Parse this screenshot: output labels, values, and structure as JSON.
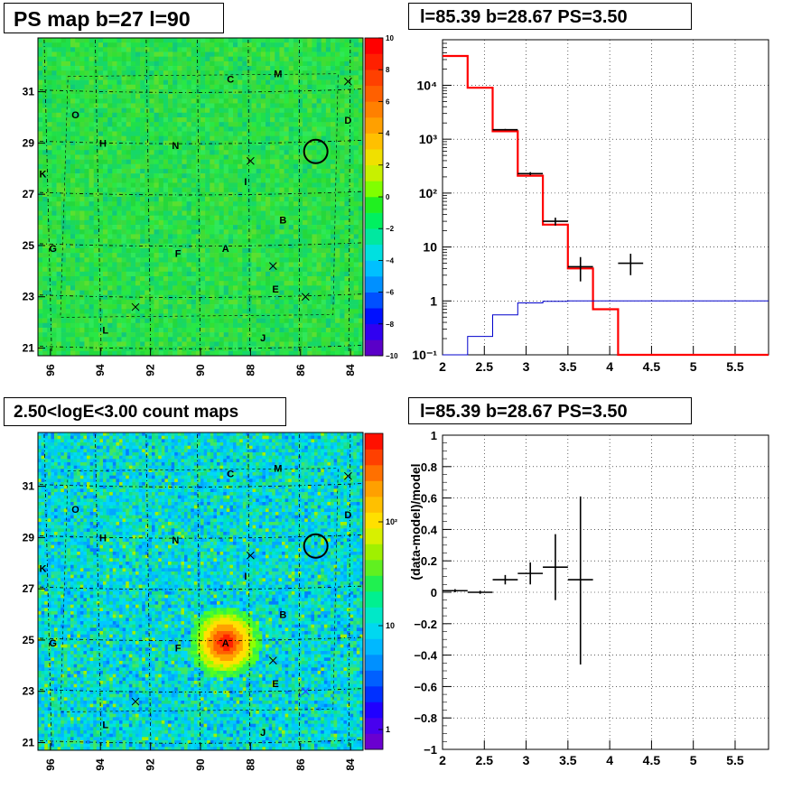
{
  "panels": {
    "top_left_title": "PS map b=27 l=90",
    "top_right_title": "l=85.39 b=28.67 PS=3.50",
    "bottom_left_title": "2.50<logE<3.00 count maps",
    "bottom_right_title": "l=85.39 b=28.67 PS=3.50"
  },
  "chart_data": [
    {
      "type": "heatmap",
      "title": "PS map b=27 l=90",
      "x_ticks": [
        "96",
        "94",
        "92",
        "90",
        "88",
        "86",
        "84"
      ],
      "y_ticks": [
        "21",
        "23",
        "25",
        "27",
        "29",
        "31"
      ],
      "colorbar_ticks": [
        "10",
        "8",
        "6",
        "4",
        "2",
        "0",
        "−2",
        "−4",
        "−6",
        "−8",
        "−10"
      ],
      "zlim": [
        -10,
        10
      ],
      "background_level": 0,
      "source_labels": [
        {
          "text": "C",
          "l": 88.8,
          "b": 31.5
        },
        {
          "text": "M",
          "l": 86.9,
          "b": 31.7
        },
        {
          "text": "O",
          "l": 95.0,
          "b": 30.1
        },
        {
          "text": "D",
          "l": 84.1,
          "b": 29.9
        },
        {
          "text": "H",
          "l": 93.9,
          "b": 29.0
        },
        {
          "text": "N",
          "l": 91.0,
          "b": 28.9
        },
        {
          "text": "K",
          "l": 96.3,
          "b": 27.8
        },
        {
          "text": "I",
          "l": 88.2,
          "b": 27.5
        },
        {
          "text": "B",
          "l": 86.7,
          "b": 26.0
        },
        {
          "text": "G",
          "l": 95.9,
          "b": 24.9
        },
        {
          "text": "A",
          "l": 89.0,
          "b": 24.9
        },
        {
          "text": "F",
          "l": 90.9,
          "b": 24.7
        },
        {
          "text": "E",
          "l": 87.0,
          "b": 23.3
        },
        {
          "text": "L",
          "l": 93.8,
          "b": 21.7
        },
        {
          "text": "J",
          "l": 87.5,
          "b": 21.4
        }
      ],
      "cross_markers": [
        {
          "l": 84.1,
          "b": 31.4
        },
        {
          "l": 88.0,
          "b": 28.3
        },
        {
          "l": 87.1,
          "b": 24.2
        },
        {
          "l": 85.8,
          "b": 23.0
        },
        {
          "l": 92.6,
          "b": 22.6
        }
      ],
      "circle": {
        "l": 85.39,
        "b": 28.67
      }
    },
    {
      "type": "line",
      "title": "l=85.39 b=28.67 PS=3.50",
      "x_ticks": [
        "2",
        "2.5",
        "3",
        "3.5",
        "4",
        "4.5",
        "5",
        "5.5"
      ],
      "y_ticks": [
        "10⁻¹",
        "1",
        "10",
        "10²",
        "10³",
        "10⁴"
      ],
      "xlim": [
        2,
        5.9
      ],
      "ylim": [
        0.1,
        70000
      ],
      "yscale": "log",
      "grid": true,
      "bin_edges": [
        2.0,
        2.3,
        2.6,
        2.9,
        3.2,
        3.5,
        3.8,
        4.1,
        4.4,
        4.7,
        5.0,
        5.3,
        5.6,
        5.9
      ],
      "series": [
        {
          "color": "#ff0000",
          "values": [
            35000,
            9000,
            1400,
            210,
            26,
            4,
            0.7,
            0.1,
            0.1,
            0.1,
            0.1,
            0.1,
            0.1
          ]
        },
        {
          "color": "#0000cc",
          "values": [
            0.1,
            0.22,
            0.55,
            0.92,
            0.98,
            1.0,
            1.0,
            1.0,
            1.0,
            1.0,
            1.0,
            1.0,
            1.0
          ]
        }
      ],
      "data_points": [
        {
          "x": 2.75,
          "y": 1500,
          "xerr": 0.15,
          "ylo": 1450,
          "yhi": 1550
        },
        {
          "x": 3.05,
          "y": 230,
          "xerr": 0.15,
          "ylo": 215,
          "yhi": 245
        },
        {
          "x": 3.35,
          "y": 30,
          "xerr": 0.15,
          "ylo": 25,
          "yhi": 35
        },
        {
          "x": 3.65,
          "y": 4.3,
          "xerr": 0.15,
          "ylo": 2.3,
          "yhi": 6.5
        },
        {
          "x": 4.25,
          "y": 5,
          "xerr": 0.15,
          "ylo": 3,
          "yhi": 7.5
        }
      ]
    },
    {
      "type": "heatmap",
      "title": "2.50<logE<3.00 count maps",
      "x_ticks": [
        "96",
        "94",
        "92",
        "90",
        "88",
        "86",
        "84"
      ],
      "y_ticks": [
        "21",
        "23",
        "25",
        "27",
        "29",
        "31"
      ],
      "colorbar_ticks": [
        "10²",
        "10",
        "1"
      ],
      "zscale": "log",
      "peak": {
        "l": 89.0,
        "b": 24.9
      }
    },
    {
      "type": "scatter",
      "title": "l=85.39 b=28.67 PS=3.50",
      "ylabel": "(data-model)/model",
      "x_ticks": [
        "2",
        "2.5",
        "3",
        "3.5",
        "4",
        "4.5",
        "5",
        "5.5"
      ],
      "y_ticks": [
        "−1",
        "−0.8",
        "−0.6",
        "−0.4",
        "−0.2",
        "0",
        "0.2",
        "0.4",
        "0.6",
        "0.8",
        "1"
      ],
      "xlim": [
        2,
        5.9
      ],
      "ylim": [
        -1,
        1
      ],
      "grid": true,
      "points": [
        {
          "x": 2.15,
          "y": 0.01,
          "xerr": 0.15,
          "ylo": 0.0,
          "yhi": 0.02
        },
        {
          "x": 2.45,
          "y": 0.0,
          "xerr": 0.15,
          "ylo": -0.01,
          "yhi": 0.01
        },
        {
          "x": 2.75,
          "y": 0.08,
          "xerr": 0.15,
          "ylo": 0.05,
          "yhi": 0.11
        },
        {
          "x": 3.05,
          "y": 0.12,
          "xerr": 0.15,
          "ylo": 0.05,
          "yhi": 0.19
        },
        {
          "x": 3.35,
          "y": 0.16,
          "xerr": 0.15,
          "ylo": -0.05,
          "yhi": 0.37
        },
        {
          "x": 3.65,
          "y": 0.08,
          "xerr": 0.15,
          "ylo": -0.46,
          "yhi": 0.61
        }
      ]
    }
  ]
}
